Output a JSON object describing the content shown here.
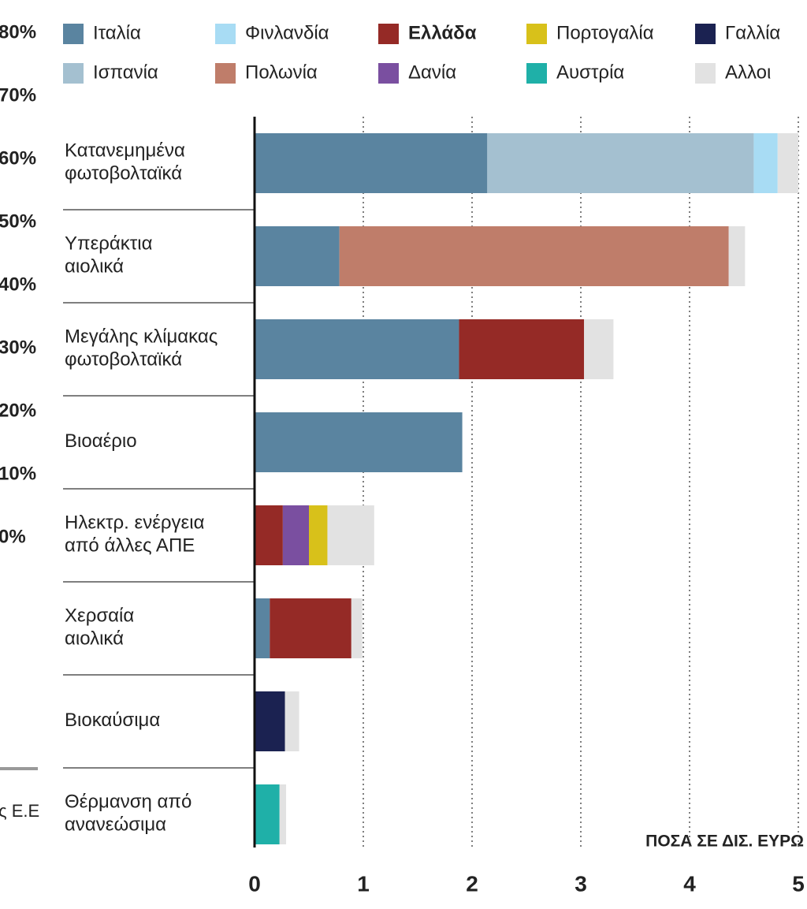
{
  "chart_data": {
    "type": "stacked-barh",
    "xlabel": "ΠΟΣΑ ΣΕ ΔΙΣ. ΕΥΡΩ",
    "categories": [
      "Κατανεμημένα\nφωτοβολταϊκά",
      "Υπεράκτια\nαιολικά",
      "Μεγάλης κλίμακας\nφωτοβολταϊκά",
      "Βιοαέριο",
      "Ηλεκτρ. ενέργεια\nαπό άλλες ΑΠΕ",
      "Χερσαία\nαιολικά",
      "Βιοκαύσιμα",
      "Θέρμανση από\nανανεώσιμα"
    ],
    "series": [
      {
        "name": "Ιταλία",
        "color": "#5a84a0",
        "values": [
          2.14,
          0.78,
          1.88,
          1.91,
          null,
          0.14,
          null,
          null
        ]
      },
      {
        "name": "Ισπανία",
        "color": "#a4c0d0",
        "values": [
          2.45,
          null,
          null,
          null,
          null,
          null,
          null,
          null
        ]
      },
      {
        "name": "Φινλανδία",
        "color": "#a8dcf4",
        "values": [
          0.22,
          null,
          null,
          null,
          null,
          null,
          null,
          null
        ]
      },
      {
        "name": "Πολωνία",
        "color": "#bf7d6a",
        "values": [
          null,
          3.58,
          null,
          null,
          null,
          null,
          null,
          null
        ]
      },
      {
        "name": "Ελλάδα",
        "color": "#952a26",
        "bold": true,
        "values": [
          null,
          null,
          1.15,
          null,
          0.26,
          0.75,
          null,
          null
        ]
      },
      {
        "name": "Δανία",
        "color": "#7a4fa0",
        "values": [
          null,
          null,
          null,
          null,
          0.24,
          null,
          null,
          null
        ]
      },
      {
        "name": "Πορτογαλία",
        "color": "#d8c11a",
        "values": [
          null,
          null,
          null,
          null,
          0.17,
          null,
          null,
          null
        ]
      },
      {
        "name": "Αυστρία",
        "color": "#1fb0a8",
        "values": [
          null,
          null,
          null,
          null,
          null,
          null,
          null,
          0.23
        ]
      },
      {
        "name": "Γαλλία",
        "color": "#1b2251",
        "values": [
          null,
          null,
          null,
          null,
          null,
          null,
          0.28,
          null
        ]
      },
      {
        "name": "Αλλοι",
        "color": "#e2e2e2",
        "values": [
          0.19,
          0.15,
          0.27,
          null,
          0.43,
          0.1,
          0.13,
          0.06
        ]
      }
    ],
    "xlim": [
      0,
      5
    ],
    "xticks": [
      0,
      1,
      2,
      3,
      4,
      5
    ],
    "grid": true,
    "legend": "top"
  },
  "left_chart": {
    "yticks": [
      {
        "value": 80,
        "label": "80%"
      },
      {
        "value": 70,
        "label": "70%"
      },
      {
        "value": 60,
        "label": "60%"
      },
      {
        "value": 50,
        "label": "50%"
      },
      {
        "value": 40,
        "label": "40%"
      },
      {
        "value": 30,
        "label": "30%"
      },
      {
        "value": 20,
        "label": "20%"
      },
      {
        "value": 10,
        "label": "10%"
      },
      {
        "value": 0,
        "label": "0%"
      }
    ],
    "note": "ς Ε.Ε"
  }
}
